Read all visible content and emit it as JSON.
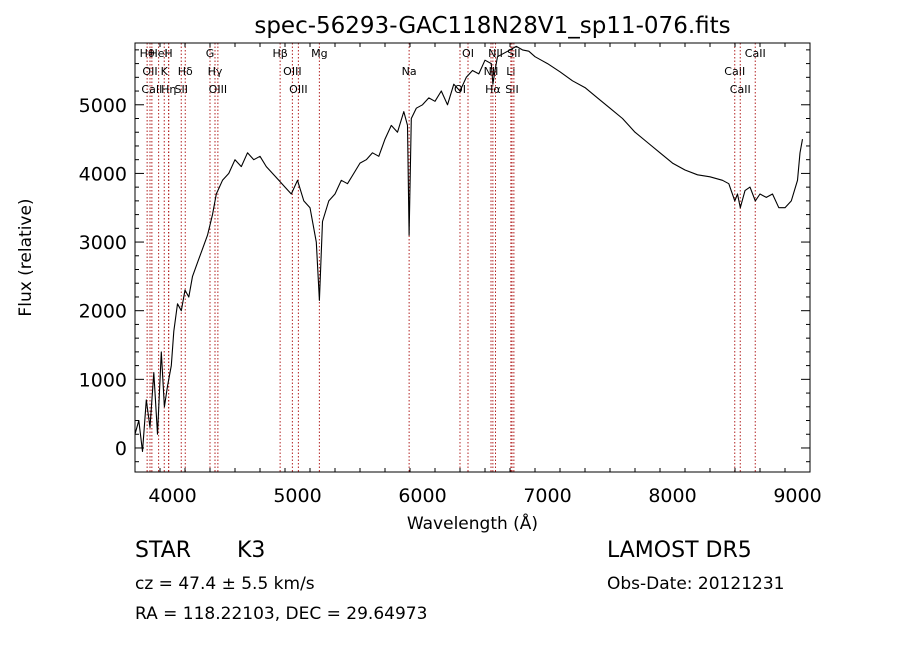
{
  "chart_data": {
    "type": "line",
    "title": "spec-56293-GAC118N28V1_sp11-076.fits",
    "xlabel": "Wavelength (Å)",
    "ylabel": "Flux (relative)",
    "xlim": [
      3700,
      9100
    ],
    "ylim": [
      -350,
      5900
    ],
    "xticks": [
      4000,
      5000,
      6000,
      7000,
      8000,
      9000
    ],
    "yticks": [
      0,
      1000,
      2000,
      3000,
      4000,
      5000
    ],
    "grid": false,
    "series": [
      {
        "x": [
          3700,
          3730,
          3760,
          3790,
          3820,
          3850,
          3880,
          3910,
          3935,
          3960,
          3990,
          4010,
          4040,
          4070,
          4100,
          4130,
          4160,
          4200,
          4240,
          4280,
          4320,
          4350,
          4400,
          4450,
          4500,
          4550,
          4600,
          4650,
          4700,
          4750,
          4800,
          4850,
          4900,
          4950,
          5000,
          5050,
          5100,
          5150,
          5175,
          5200,
          5250,
          5300,
          5350,
          5400,
          5450,
          5500,
          5550,
          5600,
          5650,
          5700,
          5750,
          5800,
          5850,
          5880,
          5893,
          5910,
          5950,
          6000,
          6050,
          6100,
          6150,
          6200,
          6250,
          6300,
          6350,
          6400,
          6450,
          6500,
          6550,
          6563,
          6580,
          6600,
          6650,
          6700,
          6750,
          6800,
          6850,
          6900,
          6950,
          7000,
          7100,
          7200,
          7300,
          7400,
          7500,
          7600,
          7700,
          7800,
          7900,
          8000,
          8100,
          8200,
          8300,
          8400,
          8450,
          8498,
          8520,
          8542,
          8580,
          8620,
          8662,
          8700,
          8750,
          8800,
          8850,
          8900,
          8950,
          9000,
          9020,
          9040
        ],
        "y": [
          200,
          400,
          -50,
          700,
          300,
          1100,
          200,
          1400,
          600,
          900,
          1200,
          1700,
          2100,
          2000,
          2300,
          2200,
          2500,
          2700,
          2900,
          3100,
          3400,
          3700,
          3900,
          4000,
          4200,
          4100,
          4300,
          4200,
          4250,
          4100,
          4000,
          3900,
          3800,
          3700,
          3900,
          3600,
          3500,
          3000,
          2150,
          3300,
          3600,
          3700,
          3900,
          3850,
          4000,
          4150,
          4200,
          4300,
          4250,
          4500,
          4700,
          4600,
          4900,
          4700,
          3100,
          4800,
          4950,
          5000,
          5100,
          5050,
          5200,
          5000,
          5300,
          5200,
          5400,
          5500,
          5450,
          5650,
          5600,
          5300,
          5500,
          5700,
          5750,
          5800,
          5850,
          5800,
          5780,
          5700,
          5650,
          5600,
          5480,
          5350,
          5250,
          5100,
          4950,
          4800,
          4600,
          4450,
          4300,
          4150,
          4050,
          3980,
          3950,
          3900,
          3850,
          3600,
          3700,
          3500,
          3750,
          3800,
          3600,
          3700,
          3650,
          3700,
          3500,
          3500,
          3600,
          3900,
          4300,
          4500
        ]
      }
    ],
    "lines": [
      {
        "x": 3797,
        "label": "Hθ"
      },
      {
        "x": 3820,
        "label": "OII"
      },
      {
        "x": 3835,
        "label": "CaII"
      },
      {
        "x": 3889,
        "label": "HeI"
      },
      {
        "x": 3934,
        "label": "K"
      },
      {
        "x": 3970,
        "label": "Hη"
      },
      {
        "x": 3968,
        "label": "H"
      },
      {
        "x": 4102,
        "label": "Hδ"
      },
      {
        "x": 4070,
        "label": "SII"
      },
      {
        "x": 4300,
        "label": "G"
      },
      {
        "x": 4340,
        "label": "Hγ"
      },
      {
        "x": 4363,
        "label": "OIII"
      },
      {
        "x": 4861,
        "label": "Hβ"
      },
      {
        "x": 4959,
        "label": "OIII"
      },
      {
        "x": 5007,
        "label": "OIII"
      },
      {
        "x": 5175,
        "label": "Mg"
      },
      {
        "x": 5893,
        "label": "Na"
      },
      {
        "x": 6300,
        "label": "OI"
      },
      {
        "x": 6364,
        "label": "OI"
      },
      {
        "x": 6548,
        "label": "NII"
      },
      {
        "x": 6563,
        "label": "Hα"
      },
      {
        "x": 6584,
        "label": "NII"
      },
      {
        "x": 6707,
        "label": "Li"
      },
      {
        "x": 6716,
        "label": "SII"
      },
      {
        "x": 6731,
        "label": "SII"
      },
      {
        "x": 8498,
        "label": "CaII"
      },
      {
        "x": 8542,
        "label": "CaII"
      },
      {
        "x": 8662,
        "label": "CaII"
      }
    ],
    "line_color": "#b22222"
  },
  "info": {
    "class": "STAR",
    "subclass": "K3",
    "survey": "LAMOST DR5",
    "cz": "cz = 47.4 ± 5.5 km/s",
    "obs_date": "Obs-Date: 20121231",
    "radec": "RA = 118.22103, DEC =  29.64973"
  }
}
